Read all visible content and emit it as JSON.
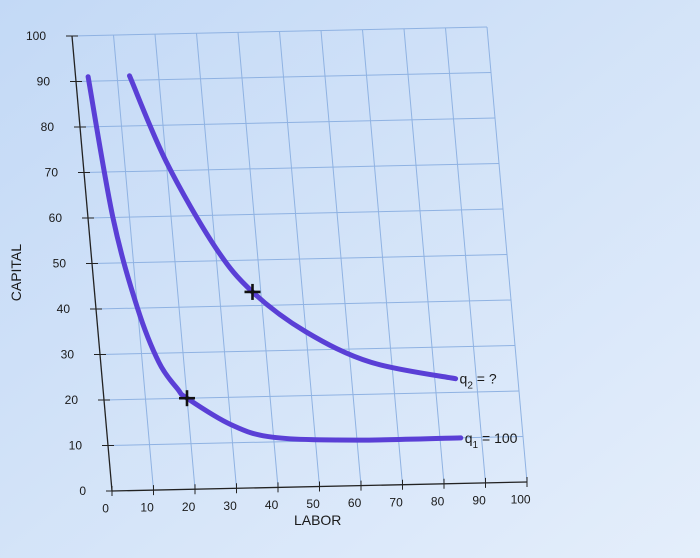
{
  "chart_data": {
    "type": "line",
    "xlabel": "LABOR",
    "ylabel": "CAPITAL",
    "xlim": [
      0,
      100
    ],
    "ylim": [
      0,
      100
    ],
    "x_ticks": [
      "0",
      "10",
      "20",
      "30",
      "40",
      "50",
      "60",
      "70",
      "80",
      "90",
      "100"
    ],
    "y_ticks": [
      "0",
      "10",
      "20",
      "30",
      "40",
      "50",
      "60",
      "70",
      "80",
      "90",
      "100"
    ],
    "grid": true,
    "series": [
      {
        "name": "q1 = 100",
        "label_main": "q",
        "label_sub": "1",
        "label_rest": " = 100",
        "color": "#5a3fd6",
        "points": [
          [
            3,
            91
          ],
          [
            6,
            60
          ],
          [
            10,
            40
          ],
          [
            14,
            28
          ],
          [
            18,
            22
          ],
          [
            20,
            20
          ],
          [
            30,
            14
          ],
          [
            40,
            11
          ],
          [
            60,
            10
          ],
          [
            85,
            10
          ]
        ]
      },
      {
        "name": "q2 = ?",
        "label_main": "q",
        "label_sub": "2",
        "label_rest": " = ?",
        "color": "#5a3fd6",
        "points": [
          [
            13,
            91
          ],
          [
            20,
            72
          ],
          [
            30,
            53
          ],
          [
            38,
            43
          ],
          [
            50,
            34
          ],
          [
            65,
            27
          ],
          [
            85,
            23
          ]
        ]
      }
    ],
    "markers": [
      {
        "x": 20,
        "y": 20,
        "symbol": "+"
      },
      {
        "x": 38,
        "y": 43,
        "symbol": "+"
      }
    ]
  }
}
